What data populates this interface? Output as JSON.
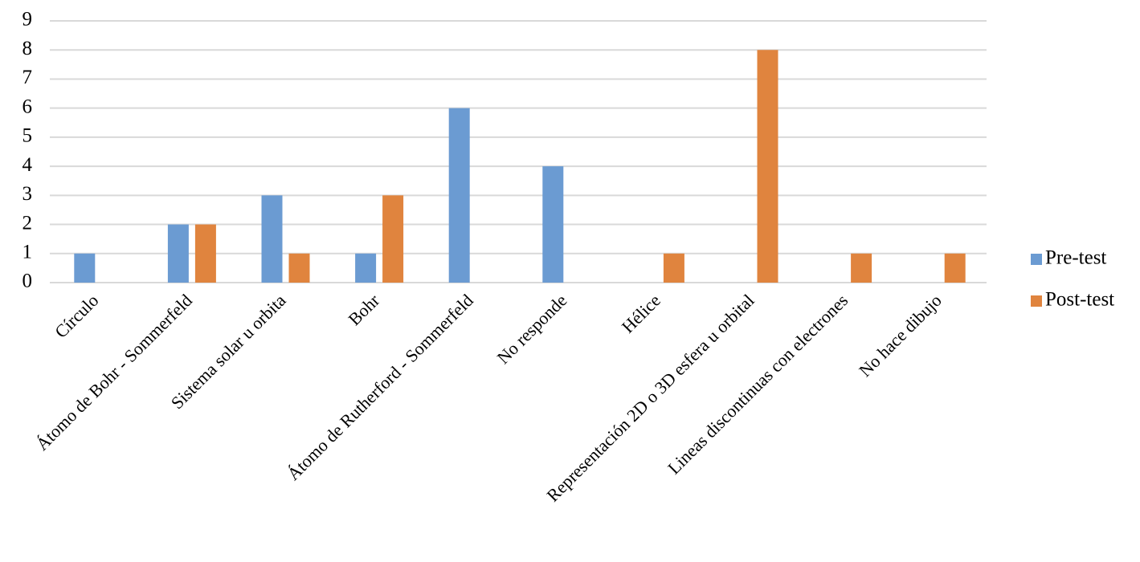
{
  "chart_data": {
    "type": "bar",
    "categories": [
      "Círculo",
      "Átomo de Bohr - Sommerfeld",
      "Sistema solar u orbita",
      "Bohr",
      "Átomo de Rutherford - Sommerfeld",
      "No responde",
      "Hélice",
      "Representación 2D o 3D esfera u orbital",
      "Lineas discontinuas con electrones",
      "No hace dibujo"
    ],
    "series": [
      {
        "name": "Pre-test",
        "color": "#6b9bd2",
        "values": [
          1,
          2,
          3,
          1,
          6,
          4,
          0,
          0,
          0,
          0
        ]
      },
      {
        "name": "Post-test",
        "color": "#e0843e",
        "values": [
          0,
          2,
          1,
          3,
          0,
          0,
          1,
          8,
          1,
          1
        ]
      }
    ],
    "ylim": [
      0,
      9
    ],
    "yticks": [
      0,
      1,
      2,
      3,
      4,
      5,
      6,
      7,
      8,
      9
    ],
    "grid": true,
    "legend": "right"
  }
}
